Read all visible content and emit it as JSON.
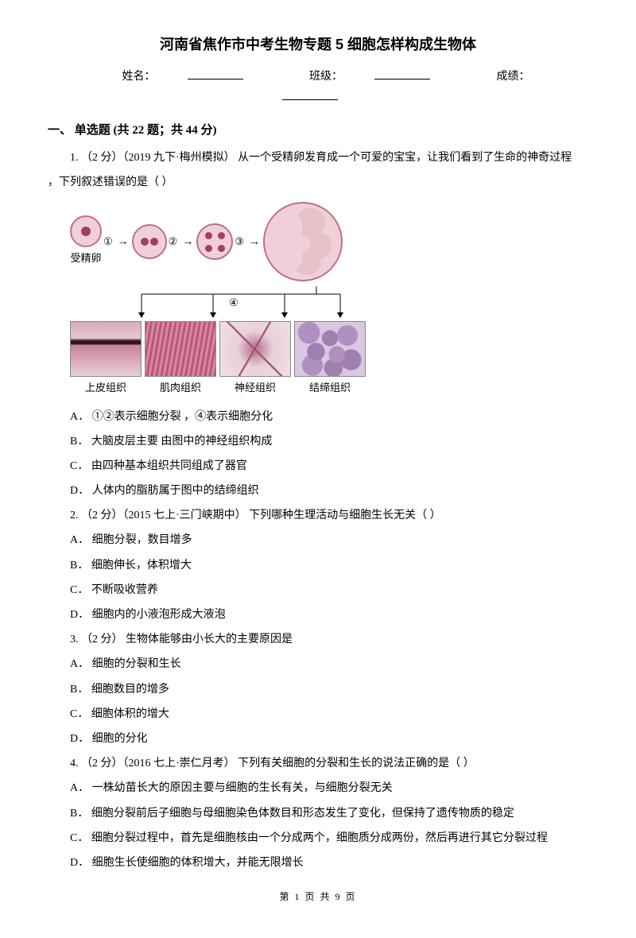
{
  "title": "河南省焦作市中考生物专题 5 细胞怎样构成生物体",
  "fields": {
    "name_label": "姓名：",
    "class_label": "班级：",
    "score_label": "成绩："
  },
  "section": "一、 单选题 (共 22 题；共 44 分)",
  "diagram": {
    "fert_egg_label": "受精卵",
    "step1": "①",
    "step2": "②",
    "step3": "③",
    "step4": "④",
    "tissues": [
      {
        "label": "上皮组织"
      },
      {
        "label": "肌肉组织"
      },
      {
        "label": "神经组织"
      },
      {
        "label": "结缔组织"
      }
    ]
  },
  "questions": [
    {
      "num": "1.",
      "meta": "（2 分）（2019 九下·梅州模拟）",
      "stem": "从一个受精卵发育成一个可爱的宝宝，让我们看到了生命的神奇过程，下列叙述错误的是（    ）",
      "has_diagram": true,
      "options": [
        "①②表示细胞分裂 ，④表示细胞分化",
        "大脑皮层主要 由图中的神经组织构成",
        "由四种基本组织共同组成了器官",
        "人体内的脂肪属于图中的结缔组织"
      ]
    },
    {
      "num": "2.",
      "meta": "（2 分）（2015 七上·三门峡期中）",
      "stem": "下列哪种生理活动与细胞生长无关（    ）",
      "options": [
        "细胞分裂，数目增多",
        "细胞伸长，体积增大",
        "不断吸收营养",
        "细胞内的小液泡形成大液泡"
      ]
    },
    {
      "num": "3.",
      "meta": "（2 分）",
      "stem": "生物体能够由小长大的主要原因是",
      "options": [
        "细胞的分裂和生长",
        "细胞数目的增多",
        "细胞体积的增大",
        "细胞的分化"
      ]
    },
    {
      "num": "4.",
      "meta": "（2 分）（2016 七上·崇仁月考）",
      "stem": "下列有关细胞的分裂和生长的说法正确的是（    ）",
      "options": [
        "一株幼苗长大的原因主要与细胞的生长有关，与细胞分裂无关",
        "细胞分裂前后子细胞与母细胞染色体数目和形态发生了变化，但保持了遗传物质的稳定",
        "细胞分裂过程中，首先是细胞核由一个分成两个，细胞质分成两份，然后再进行其它分裂过程",
        "细胞生长使细胞的体积增大，并能无限增长"
      ]
    }
  ],
  "option_labels": [
    "A．",
    "B．",
    "C．",
    "D．"
  ],
  "footer": "第 1 页 共 9 页"
}
